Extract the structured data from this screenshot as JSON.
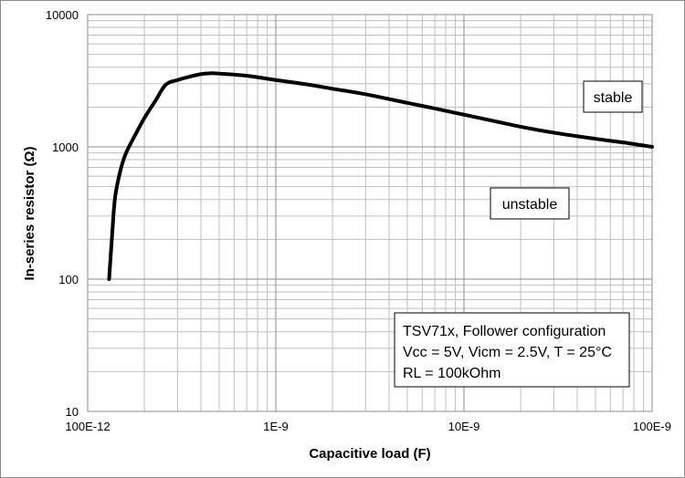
{
  "chart_data": {
    "type": "line",
    "xlabel": "Capacitive load (F)",
    "ylabel": "In-series resistor (Ω)",
    "xscale": "log",
    "yscale": "log",
    "xlim": [
      1e-10,
      1e-07
    ],
    "ylim": [
      10,
      10000
    ],
    "grid": "major and minor",
    "x_tick_labels": [
      "100E-12",
      "1E-9",
      "10E-9",
      "100E-9"
    ],
    "y_tick_labels": [
      "10",
      "100",
      "1000",
      "10000"
    ],
    "series": [
      {
        "color": "#000000",
        "x": [
          1.3e-10,
          1.35e-10,
          1.4e-10,
          1.5e-10,
          1.6e-10,
          1.8e-10,
          2e-10,
          2.3e-10,
          2.6e-10,
          3e-10,
          3.5e-10,
          4e-10,
          4.5e-10,
          5e-10,
          7e-10,
          1e-09,
          1.5e-09,
          2e-09,
          3e-09,
          5e-09,
          7e-09,
          1e-08,
          1.5e-08,
          2e-08,
          3e-08,
          5e-08,
          7e-08,
          1e-07
        ],
        "y": [
          100,
          220,
          420,
          680,
          900,
          1250,
          1650,
          2250,
          2950,
          3200,
          3400,
          3550,
          3600,
          3580,
          3450,
          3200,
          2950,
          2750,
          2500,
          2150,
          1950,
          1750,
          1550,
          1420,
          1280,
          1150,
          1080,
          1000
        ]
      }
    ],
    "annotations": [
      {
        "id": "stable",
        "text": "stable"
      },
      {
        "id": "unstable",
        "text": "unstable"
      },
      {
        "id": "conditions",
        "lines": [
          "TSV71x, Follower configuration",
          "Vcc = 5V, Vicm = 2.5V, T = 25°C",
          "RL = 100kOhm"
        ]
      }
    ]
  }
}
